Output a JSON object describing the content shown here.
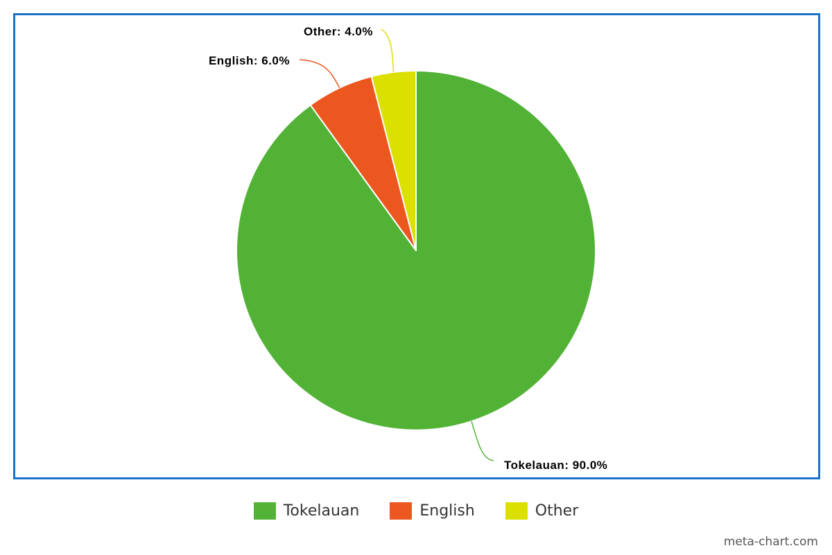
{
  "chart_data": {
    "type": "pie",
    "title": "",
    "slices": [
      {
        "name": "Tokelauan",
        "value": 90.0,
        "label": "Tokelauan: 90.0%",
        "color": "#52b236"
      },
      {
        "name": "English",
        "value": 6.0,
        "label": "English: 6.0%",
        "color": "#ec561f"
      },
      {
        "name": "Other",
        "value": 4.0,
        "label": "Other: 4.0%",
        "color": "#dbe000"
      }
    ],
    "legend_position": "bottom-center"
  },
  "frame_color": "#1a73c9",
  "watermark": "meta-chart.com"
}
